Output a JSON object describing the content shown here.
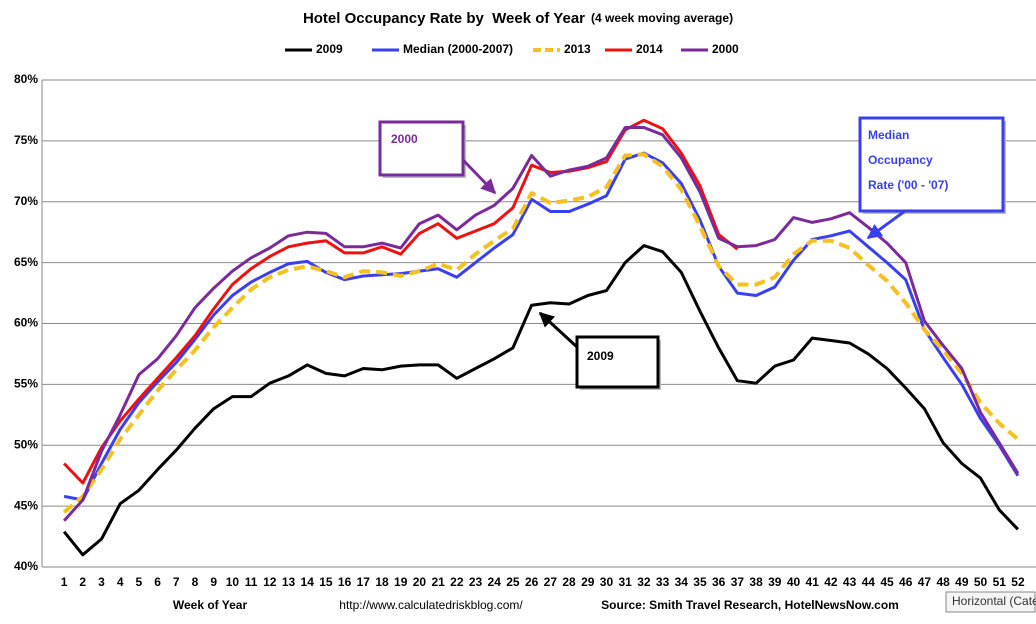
{
  "chart_data": {
    "type": "line",
    "title": "Hotel Occupancy Rate by  Week of Year",
    "subtitle": "(4 week moving average)",
    "x_label": "Week of Year",
    "url": "http://www.calculatedriskblog.com/",
    "source": "Source: Smith Travel Research, HotelNewsNow.com",
    "tooltip": "Horizontal (Cate",
    "legend": "top",
    "grid": true,
    "categories": [
      1,
      2,
      3,
      4,
      5,
      6,
      7,
      8,
      9,
      10,
      11,
      12,
      13,
      14,
      15,
      16,
      17,
      18,
      19,
      20,
      21,
      22,
      23,
      24,
      25,
      26,
      27,
      28,
      29,
      30,
      31,
      32,
      33,
      34,
      35,
      36,
      37,
      38,
      39,
      40,
      41,
      42,
      43,
      44,
      45,
      46,
      47,
      48,
      49,
      50,
      51,
      52
    ],
    "ylim": [
      40,
      80
    ],
    "yticks": [
      {
        "value": 40,
        "label": "40%"
      },
      {
        "value": 45,
        "label": "45%"
      },
      {
        "value": 50,
        "label": "50%"
      },
      {
        "value": 55,
        "label": "55%"
      },
      {
        "value": 60,
        "label": "60%"
      },
      {
        "value": 65,
        "label": "65%"
      },
      {
        "value": 70,
        "label": "70%"
      },
      {
        "value": 75,
        "label": "75%"
      },
      {
        "value": 80,
        "label": "80%"
      }
    ],
    "series": [
      {
        "name": "2009",
        "color": "#000000",
        "dashed": false,
        "values": [
          42.9,
          41,
          42.3,
          45.2,
          46.3,
          48,
          49.6,
          51.4,
          53,
          54,
          54,
          55.1,
          55.7,
          56.6,
          55.9,
          55.7,
          56.3,
          56.2,
          56.5,
          56.6,
          56.6,
          55.5,
          56.3,
          57.1,
          58,
          61.5,
          61.7,
          61.6,
          62.3,
          62.7,
          65,
          66.4,
          65.9,
          64.2,
          61,
          58,
          55.3,
          55.1,
          56.5,
          57,
          58.8,
          58.6,
          58.4,
          57.5,
          56.3,
          54.7,
          53,
          50.2,
          48.5,
          47.3,
          44.7,
          43.1
        ]
      },
      {
        "name": "Median (2000-2007)",
        "color": "#3a3ff0",
        "dashed": false,
        "values": [
          45.8,
          45.5,
          48.5,
          51.3,
          53.5,
          55.2,
          56.8,
          58.7,
          60.7,
          62.3,
          63.4,
          64.2,
          64.9,
          65.1,
          64.2,
          63.6,
          63.9,
          64,
          64.1,
          64.3,
          64.5,
          63.8,
          65,
          66.2,
          67.3,
          70.2,
          69.2,
          69.2,
          69.8,
          70.5,
          73.5,
          74,
          73.2,
          71.5,
          68.5,
          64.7,
          62.5,
          62.3,
          63,
          65.2,
          66.9,
          67.2,
          67.6,
          66.3,
          65,
          63.6,
          59.5,
          57.2,
          55,
          52.2,
          50,
          47.5
        ]
      },
      {
        "name": "2013",
        "color": "#f5c020",
        "dashed": true,
        "values": [
          44.5,
          45.8,
          48,
          50.5,
          52.5,
          54.5,
          56.2,
          57.8,
          59.7,
          61.3,
          62.8,
          63.8,
          64.4,
          64.7,
          64.3,
          63.8,
          64.3,
          64.2,
          63.9,
          64.3,
          64.9,
          64.4,
          65.7,
          66.8,
          67.8,
          70.7,
          69.9,
          70.1,
          70.4,
          71.2,
          73.8,
          73.9,
          72.9,
          71,
          68,
          64.7,
          63.2,
          63.2,
          63.8,
          65.7,
          66.8,
          66.8,
          66.2,
          64.8,
          63.5,
          61.7,
          59.5,
          57.8,
          55.9,
          53.5,
          51.8,
          50.5
        ]
      },
      {
        "name": "2014",
        "color": "#ee1111",
        "dashed": false,
        "values": [
          48.5,
          46.9,
          49.8,
          52,
          53.8,
          55.5,
          57.2,
          59,
          61.2,
          63.2,
          64.5,
          65.5,
          66.3,
          66.6,
          66.8,
          65.8,
          65.8,
          66.3,
          65.7,
          67.4,
          68.2,
          67,
          67.6,
          68.2,
          69.5,
          73,
          72.4,
          72.5,
          72.8,
          73.3,
          75.9,
          76.7,
          76,
          74,
          71.3,
          67.3,
          66.1,
          null,
          null,
          null,
          null,
          null,
          null,
          null,
          null,
          null,
          null,
          null,
          null,
          null,
          null,
          null
        ]
      },
      {
        "name": "2000",
        "color": "#7a2a9a",
        "dashed": false,
        "values": [
          43.8,
          45.5,
          49.5,
          52.5,
          55.8,
          57.1,
          59,
          61.3,
          62.9,
          64.3,
          65.4,
          66.2,
          67.2,
          67.5,
          67.4,
          66.3,
          66.3,
          66.6,
          66.2,
          68.2,
          68.9,
          67.7,
          68.9,
          69.7,
          71.1,
          73.8,
          72.1,
          72.6,
          72.9,
          73.6,
          76.1,
          76.1,
          75.5,
          73.6,
          70.8,
          67,
          66.3,
          66.4,
          66.9,
          68.7,
          68.3,
          68.6,
          69.1,
          67.9,
          66.6,
          65,
          60.2,
          58.2,
          56.3,
          52.7,
          50.2,
          47.7
        ]
      }
    ],
    "annotations": [
      {
        "lines": [
          "2000"
        ],
        "color": "#7a2a9a"
      },
      {
        "lines": [
          "Median",
          "Occupancy",
          "Rate ('00 - '07)"
        ],
        "color": "#3a3ff0"
      },
      {
        "lines": [
          "2009"
        ],
        "color": "#000000"
      }
    ]
  }
}
